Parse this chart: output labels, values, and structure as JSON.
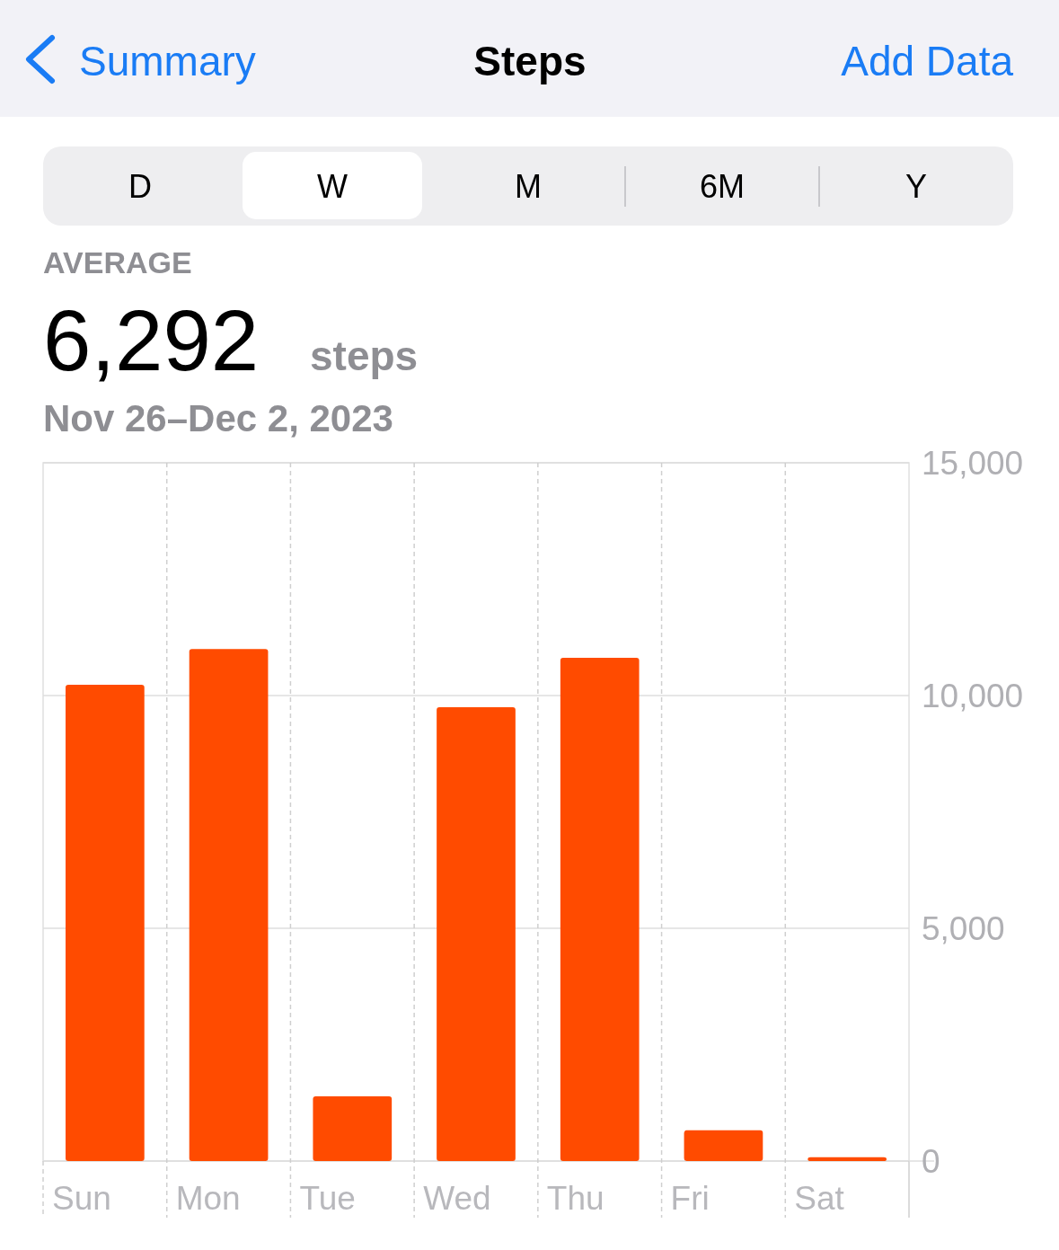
{
  "chart_data": {
    "type": "bar",
    "title": "Steps",
    "subtitle": "Nov 26–Dec 2, 2023",
    "annotations": [
      "Summary",
      "Add Data",
      "D",
      "W",
      "M",
      "6M",
      "Y",
      "AVERAGE",
      "6,292",
      "steps"
    ],
    "categories": [
      "Sun",
      "Mon",
      "Tue",
      "Wed",
      "Thu",
      "Fri",
      "Sat"
    ],
    "values": [
      10230,
      11000,
      1390,
      9750,
      10810,
      660,
      80
    ],
    "color": "#ff4b00",
    "ylim": [
      0,
      15000
    ],
    "yticks": [
      {
        "value": 0,
        "label": "0"
      },
      {
        "value": 5000,
        "label": "5,000"
      },
      {
        "value": 10000,
        "label": "10,000"
      },
      {
        "value": 15000,
        "label": "15,000"
      }
    ],
    "grid": true
  }
}
